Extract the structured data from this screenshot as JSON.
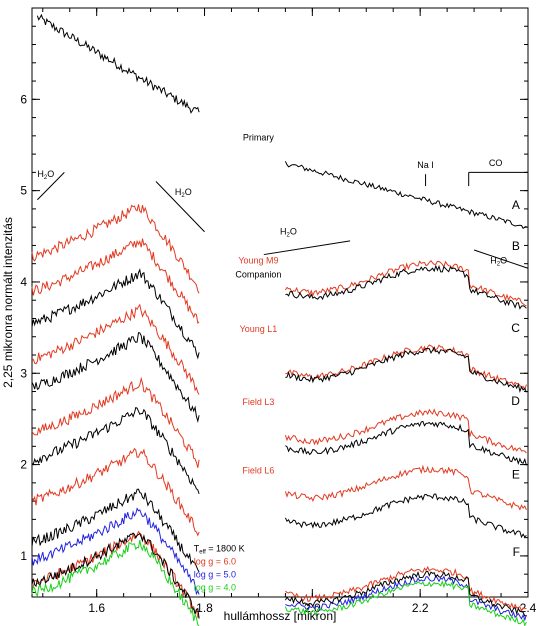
{
  "chart_data": {
    "type": "line",
    "title": "",
    "xlabel": "hullámhossz [mikron]",
    "ylabel": "2,25 mikronra normált intenzitás",
    "xlim": [
      1.48,
      2.4
    ],
    "ylim": [
      0.55,
      7.0
    ],
    "x_ticks": [
      {
        "v": 1.6,
        "label": "1.6"
      },
      {
        "v": 1.8,
        "label": "1.8"
      },
      {
        "v": 2.0,
        "label": "2.0"
      },
      {
        "v": 2.2,
        "label": "2.2"
      },
      {
        "v": 2.4,
        "label": "2.4"
      }
    ],
    "y_ticks": [
      {
        "v": 1,
        "label": "1"
      },
      {
        "v": 2,
        "label": "2"
      },
      {
        "v": 3,
        "label": "3"
      },
      {
        "v": 4,
        "label": "4"
      },
      {
        "v": 5,
        "label": "5"
      },
      {
        "v": 6,
        "label": "6"
      }
    ],
    "grid": false,
    "h_segment": [
      1.48,
      1.79
    ],
    "k_segment": [
      1.95,
      2.4
    ],
    "colors": {
      "black": "#000000",
      "red": "#e23a22",
      "blue": "#2323e0",
      "green": "#19d019"
    },
    "primary_spectrum": {
      "name": "Primary",
      "x": [
        1.49,
        1.5,
        1.51,
        1.52,
        1.55,
        1.58,
        1.61,
        1.64,
        1.67,
        1.7,
        1.73,
        1.76,
        1.79
      ],
      "y": [
        6.85,
        6.8,
        6.7,
        6.75,
        6.6,
        6.52,
        6.4,
        6.32,
        6.25,
        6.1,
        6.0,
        5.9,
        5.85
      ],
      "k_x": [
        1.95,
        2.0,
        2.1,
        2.2,
        2.3,
        2.4
      ],
      "k_y": [
        5.3,
        5.1,
        4.95,
        4.8,
        4.7,
        4.6
      ]
    },
    "series_rows": [
      {
        "letter": "A",
        "label": "",
        "label_color": "#000000",
        "h_offset": 4.83,
        "k_base": null,
        "spectra": [
          {
            "color": "#e23a22",
            "h_shift": 0.0,
            "k_shift": 0.0
          }
        ]
      },
      {
        "letter": "B",
        "label": "Young M9",
        "label_color": "#e23a22",
        "h_offset": 4.45,
        "k_base": 4.15,
        "spectra": [
          {
            "color": "#e23a22",
            "h_shift": 0.0,
            "k_shift": 0.05
          },
          {
            "color": "#000000",
            "h_shift": -0.35,
            "k_shift": 0.0
          }
        ]
      },
      {
        "letter": "",
        "label": "Companion",
        "label_color": "#000000",
        "h_offset": null,
        "k_base": null,
        "spectra": []
      },
      {
        "letter": "C",
        "label": "Young L1",
        "label_color": "#e23a22",
        "h_offset": 3.7,
        "k_base": 3.25,
        "spectra": [
          {
            "color": "#e23a22",
            "h_shift": 0.0,
            "k_shift": 0.03
          },
          {
            "color": "#000000",
            "h_shift": -0.3,
            "k_shift": 0.0
          }
        ]
      },
      {
        "letter": "D",
        "label": "Field L3",
        "label_color": "#e23a22",
        "h_offset": 2.9,
        "k_base": 2.45,
        "spectra": [
          {
            "color": "#e23a22",
            "h_shift": 0.0,
            "k_shift": 0.12
          },
          {
            "color": "#000000",
            "h_shift": -0.3,
            "k_shift": 0.0
          }
        ]
      },
      {
        "letter": "E",
        "label": "Field L6",
        "label_color": "#e23a22",
        "h_offset": 2.15,
        "k_base": 1.65,
        "spectra": [
          {
            "color": "#e23a22",
            "h_shift": 0.0,
            "k_shift": 0.3
          },
          {
            "color": "#000000",
            "h_shift": -0.45,
            "k_shift": 0.0
          }
        ]
      },
      {
        "letter": "F",
        "label": "",
        "label_color": "#000000",
        "h_offset": 1.25,
        "k_base": 0.8,
        "spectra": [
          {
            "color": "#e23a22",
            "h_shift": 0.0,
            "k_shift": 0.05
          },
          {
            "color": "#2323e0",
            "h_shift": 0.25,
            "k_shift": -0.05
          },
          {
            "color": "#000000",
            "h_shift": 0.0,
            "k_shift": 0.0
          },
          {
            "color": "#19d019",
            "h_shift": -0.1,
            "k_shift": -0.1
          }
        ]
      }
    ],
    "legend": {
      "placement": "bottom-center",
      "teff": "T",
      "teff_sub": "eff",
      "teff_value": " = 1800 K",
      "entries": [
        {
          "label": "log g = 6.0",
          "color": "#e23a22"
        },
        {
          "label": "log g = 5.0",
          "color": "#2323e0"
        },
        {
          "label": "log g = 4.0",
          "color": "#19d019"
        }
      ]
    },
    "annotations": {
      "primary": "Primary",
      "h2o": "H",
      "h2o_sub": "2",
      "h2o_tail": "O",
      "nai": "Na I",
      "co": "CO"
    }
  }
}
